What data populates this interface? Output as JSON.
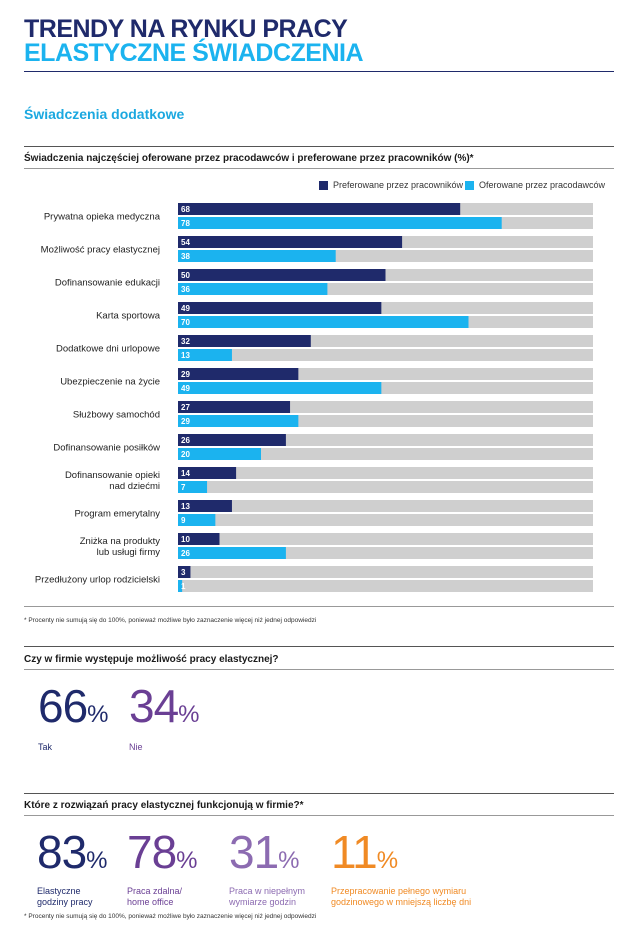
{
  "header": {
    "title_line1": "TRENDY NA RYNKU PRACY",
    "title_line2": "ELASTYCZNE ŚWIADCZENIA"
  },
  "section_title": "Świadczenia dodatkowe",
  "chart_data": {
    "type": "bar",
    "orientation": "horizontal",
    "title": "Świadczenia najczęściej oferowane przez pracodawców i preferowane przez pracowników (%)*",
    "categories": [
      "Prywatna opieka medyczna",
      "Możliwość pracy elastycznej",
      "Dofinansowanie edukacji",
      "Karta sportowa",
      "Dodatkowe dni urlopowe",
      "Ubezpieczenie na życie",
      "Służbowy samochód",
      "Dofinansowanie posiłków",
      "Dofinansowanie opieki\nnad dziećmi",
      "Program emerytalny",
      "Zniżka na produkty\nlub usługi firmy",
      "Przedłużony urlop rodzicielski"
    ],
    "series": [
      {
        "name": "Preferowane przez pracowników",
        "color": "#1f2a6b",
        "values": [
          68,
          54,
          50,
          49,
          32,
          29,
          27,
          26,
          14,
          13,
          10,
          3
        ]
      },
      {
        "name": "Oferowane przez pracodawców",
        "color": "#1bb3ef",
        "values": [
          78,
          38,
          36,
          70,
          13,
          49,
          29,
          20,
          7,
          9,
          26,
          1
        ]
      }
    ],
    "xlim": [
      0,
      100
    ],
    "footnote": "* Procenty nie sumują się do 100%, ponieważ możliwe było zaznaczenie więcej niż jednej odpowiedzi"
  },
  "flex_question": {
    "title": "Czy w firmie występuje możliwość pracy elastycznej?",
    "items": [
      {
        "value": "66",
        "unit": "%",
        "label": "Tak",
        "color": "#1f2a6b"
      },
      {
        "value": "34",
        "unit": "%",
        "label": "Nie",
        "color": "#6a3f94"
      }
    ]
  },
  "solutions_question": {
    "title": "Które z rozwiązań pracy elastycznej funkcjonują w firmie?*",
    "items": [
      {
        "value": "83",
        "unit": "%",
        "label": "Elastyczne\ngodziny pracy",
        "color": "#1f2a6b"
      },
      {
        "value": "78",
        "unit": "%",
        "label": "Praca zdalna/\nhome office",
        "color": "#6a3f94"
      },
      {
        "value": "31",
        "unit": "%",
        "label": "Praca w niepełnym\nwymiarze godzin",
        "color": "#8c6bb1"
      },
      {
        "value": "11",
        "unit": "%",
        "label": "Przepracowanie pełnego wymiaru\ngodzinowego w mniejszą liczbę dni",
        "color": "#f08a24"
      }
    ],
    "footnote": "* Procenty nie sumują się do 100%, ponieważ możliwe było zaznaczenie więcej niż jednej odpowiedzi"
  }
}
